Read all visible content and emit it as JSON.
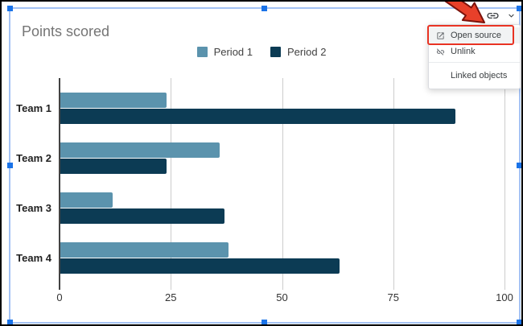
{
  "chart_data": {
    "type": "bar",
    "orientation": "horizontal",
    "title": "Points scored",
    "categories": [
      "Team 1",
      "Team 2",
      "Team 3",
      "Team 4"
    ],
    "series": [
      {
        "name": "Period 1",
        "color": "#5b93ad",
        "values": [
          24,
          36,
          12,
          38
        ]
      },
      {
        "name": "Period 2",
        "color": "#0c3b54",
        "values": [
          89,
          24,
          37,
          63
        ]
      }
    ],
    "x_ticks": [
      0,
      25,
      50,
      75,
      100
    ],
    "xlim": [
      0,
      100
    ],
    "grid": true,
    "legend_position": "top"
  },
  "toolbar": {
    "icons": [
      {
        "name": "link-icon"
      },
      {
        "name": "chevron-down-icon"
      }
    ]
  },
  "menu": {
    "items": [
      {
        "label": "Open source",
        "icon": "open-in-new-icon",
        "highlighted": true,
        "divider_before": false
      },
      {
        "label": "Unlink",
        "icon": "link-off-icon",
        "highlighted": false,
        "divider_before": false
      },
      {
        "label": "Linked objects",
        "icon": null,
        "highlighted": false,
        "divider_before": true
      }
    ]
  },
  "annotations": {
    "arrow_fill": "#e8402a",
    "arrow_outline": "#7b120b",
    "highlight_box_color": "#e93323"
  },
  "ui_colors": {
    "selection_border": "#a4c2f4",
    "selection_handle": "#1a73e8",
    "gridline": "#cccccc",
    "axis": "#424242",
    "title_text": "#757575",
    "menu_text": "#3c4043",
    "icon_gray": "#5f6368"
  }
}
